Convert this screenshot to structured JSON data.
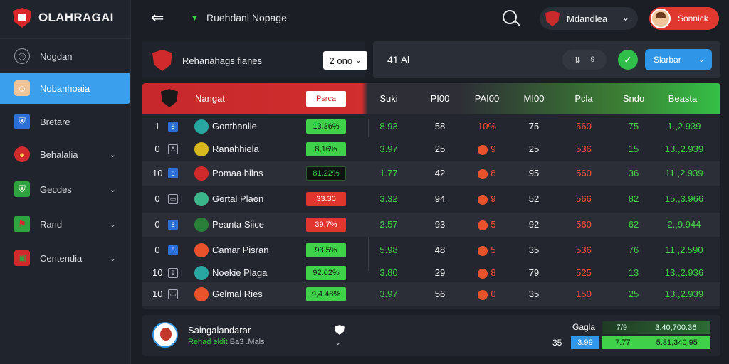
{
  "app": {
    "title": "OLAHRAGAI"
  },
  "sidebar": {
    "items": [
      {
        "label": "Nogdan",
        "icon": "dashboard-icon"
      },
      {
        "label": "Nobanhoaia",
        "icon": "player-icon"
      },
      {
        "label": "Bretare",
        "icon": "shield-icon"
      },
      {
        "label": "Behalalia",
        "icon": "team-badge-icon"
      },
      {
        "label": "Gecdes",
        "icon": "club-icon"
      },
      {
        "label": "Rand",
        "icon": "flag-icon"
      },
      {
        "label": "Centendia",
        "icon": "stadium-icon"
      }
    ]
  },
  "topbar": {
    "breadcrumb": "Ruehdanl Nopage",
    "team_select": "Mdandlea",
    "user_button": "Sonnick"
  },
  "header": {
    "title": "Rehanahags fianes",
    "season_select": "2 ono",
    "controls_label": "41 Al",
    "toggle_value": "9",
    "blue_select": "Slarbar"
  },
  "table": {
    "columns": {
      "team": "Nangat",
      "chip": "Psrca",
      "c1": "Suki",
      "c2": "PI00",
      "c3": "PAI00",
      "c4": "MI00",
      "c5": "Pcla",
      "c6": "Sndo",
      "c7": "Beasta"
    },
    "rows": [
      {
        "rank": "1",
        "pos": "8",
        "name": "Gonthanlie",
        "pct": "13.36%",
        "c1": "8.93",
        "c2": "58",
        "c3": "10%",
        "c4": "75",
        "c5": "560",
        "c6": "75",
        "c7": "1.,2.939"
      },
      {
        "rank": "0",
        "pos": "Δ",
        "name": "Ranahhiela",
        "pct": "8,16%",
        "c1": "3.97",
        "c2": "25",
        "c3": "9",
        "c4": "25",
        "c5": "536",
        "c6": "15",
        "c7": "13.,2.939"
      },
      {
        "rank": "10",
        "pos": "8",
        "name": "Pomaa bilns",
        "pct": "81.22%",
        "c1": "1.77",
        "c2": "42",
        "c3": "8",
        "c4": "95",
        "c5": "560",
        "c6": "36",
        "c7": "11.,2.939"
      },
      {
        "rank": "0",
        "pos": "▭",
        "name": "Gertal Plaen",
        "pct": "33.30",
        "c1": "3.32",
        "c2": "94",
        "c3": "9",
        "c4": "52",
        "c5": "566",
        "c6": "82",
        "c7": "15.,3.966"
      },
      {
        "rank": "0",
        "pos": "8",
        "name": "Peanta Siice",
        "pct": "39.7%",
        "c1": "2.57",
        "c2": "93",
        "c3": "5",
        "c4": "92",
        "c5": "560",
        "c6": "62",
        "c7": "2.,9.944"
      },
      {
        "rank": "0",
        "pos": "8",
        "name": "Camar Pisran",
        "pct": "93.5%",
        "c1": "5.98",
        "c2": "48",
        "c3": "5",
        "c4": "35",
        "c5": "536",
        "c6": "76",
        "c7": "11.,2.590"
      },
      {
        "rank": "10",
        "pos": "9",
        "name": "Noekie Plaga",
        "pct": "92.62%",
        "c1": "3.80",
        "c2": "29",
        "c3": "8",
        "c4": "79",
        "c5": "525",
        "c6": "13",
        "c7": "13.,2.936"
      },
      {
        "rank": "10",
        "pos": "▭",
        "name": "Gelmal Ries",
        "pct": "9,4.48%",
        "c1": "3.97",
        "c2": "56",
        "c3": "0",
        "c4": "35",
        "c5": "150",
        "c6": "25",
        "c7": "13.,2.939"
      }
    ]
  },
  "footer": {
    "name": "Saingalandarar",
    "sub_green": "Rehad eldit",
    "sub_muted": "Ba3 .Mals",
    "label1": "Gagla",
    "label2": "35",
    "bar1_a": "7/9",
    "bar1_b": "3.40,700.36",
    "bar2_a": "3.99",
    "bar2_b1": "7.77",
    "bar2_b2": "5.31,340.95"
  }
}
